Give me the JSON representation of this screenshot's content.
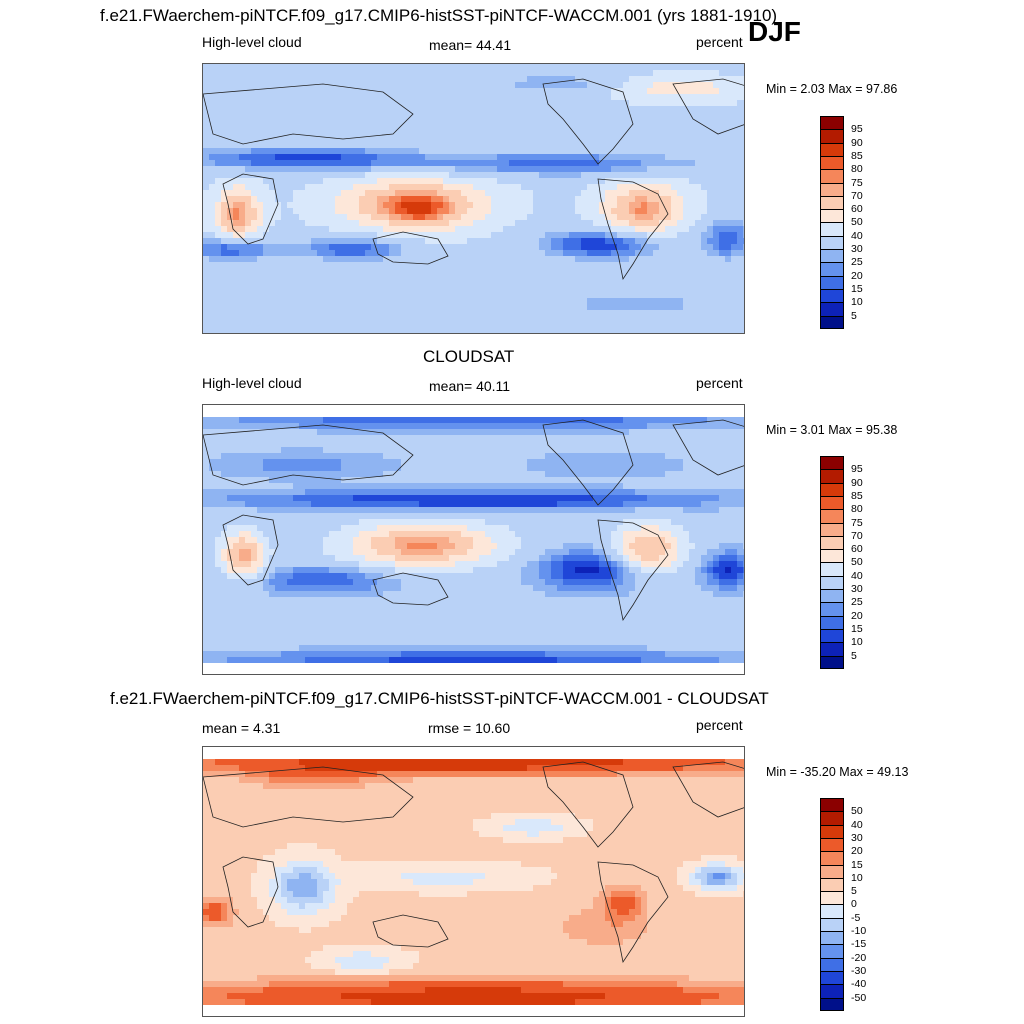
{
  "figure": {
    "season": "DJF",
    "top_title": "f.e21.FWaerchem-piNTCF.f09_g17.CMIP6-histSST-piNTCF-WACCM.001 (yrs 1881-1910)",
    "middle_title": "CLOUDSAT",
    "bottom_title": "f.e21.FWaerchem-piNTCF.f09_g17.CMIP6-histSST-piNTCF-WACCM.001 - CLOUDSAT"
  },
  "panels": [
    {
      "left_label": "High-level cloud",
      "center_label": "mean=  44.41",
      "right_label": "percent",
      "minmax": "Min =   2.03 Max =  97.86"
    },
    {
      "left_label": "High-level cloud",
      "center_label": "mean=  40.11",
      "right_label": "percent",
      "minmax": "Min =   3.01 Max =  95.38"
    },
    {
      "left_label": "mean =   4.31",
      "center_label": "rmse =  10.60",
      "right_label": "percent",
      "minmax": "Min = -35.20 Max =  49.13"
    }
  ],
  "colorbars": {
    "absolute": {
      "labels": [
        "95",
        "90",
        "85",
        "80",
        "75",
        "70",
        "60",
        "50",
        "40",
        "30",
        "25",
        "20",
        "15",
        "10",
        "5"
      ],
      "colors": [
        "#8b0000",
        "#b31b00",
        "#d63a0a",
        "#ec5a2a",
        "#f5865a",
        "#f8ac8a",
        "#fbcdb3",
        "#fde7d9",
        "#d9e8fb",
        "#b9d2f7",
        "#8fb4f2",
        "#6492ee",
        "#3f6fe6",
        "#1f46d8",
        "#0d22b8",
        "#00108a"
      ]
    },
    "difference": {
      "labels": [
        "50",
        "40",
        "30",
        "20",
        "15",
        "10",
        "5",
        "0",
        "-5",
        "-10",
        "-15",
        "-20",
        "-30",
        "-40",
        "-50"
      ],
      "colors": [
        "#8b0000",
        "#b31b00",
        "#d63a0a",
        "#ec5a2a",
        "#f5865a",
        "#f8ac8a",
        "#fbcdb3",
        "#fde7d9",
        "#d9e8fb",
        "#b9d2f7",
        "#8fb4f2",
        "#6492ee",
        "#3f6fe6",
        "#1f46d8",
        "#0d22b8",
        "#00108a"
      ]
    }
  },
  "chart_data": [
    {
      "type": "heatmap",
      "title": "f.e21.FWaerchem-piNTCF.f09_g17.CMIP6-histSST-piNTCF-WACCM.001 (yrs 1881-1910)",
      "variable": "High-level cloud",
      "units": "percent",
      "season": "DJF",
      "mean": 44.41,
      "min": 2.03,
      "max": 97.86,
      "contour_levels": [
        5,
        10,
        15,
        20,
        25,
        30,
        40,
        50,
        60,
        70,
        75,
        80,
        85,
        90,
        95
      ]
    },
    {
      "type": "heatmap",
      "title": "CLOUDSAT",
      "variable": "High-level cloud",
      "units": "percent",
      "mean": 40.11,
      "min": 3.01,
      "max": 95.38,
      "contour_levels": [
        5,
        10,
        15,
        20,
        25,
        30,
        40,
        50,
        60,
        70,
        75,
        80,
        85,
        90,
        95
      ]
    },
    {
      "type": "heatmap",
      "title": "f.e21.FWaerchem-piNTCF.f09_g17.CMIP6-histSST-piNTCF-WACCM.001 - CLOUDSAT",
      "units": "percent",
      "mean": 4.31,
      "rmse": 10.6,
      "min": -35.2,
      "max": 49.13,
      "contour_levels": [
        -50,
        -40,
        -30,
        -20,
        -15,
        -10,
        -5,
        0,
        5,
        10,
        15,
        20,
        30,
        40,
        50
      ]
    }
  ]
}
